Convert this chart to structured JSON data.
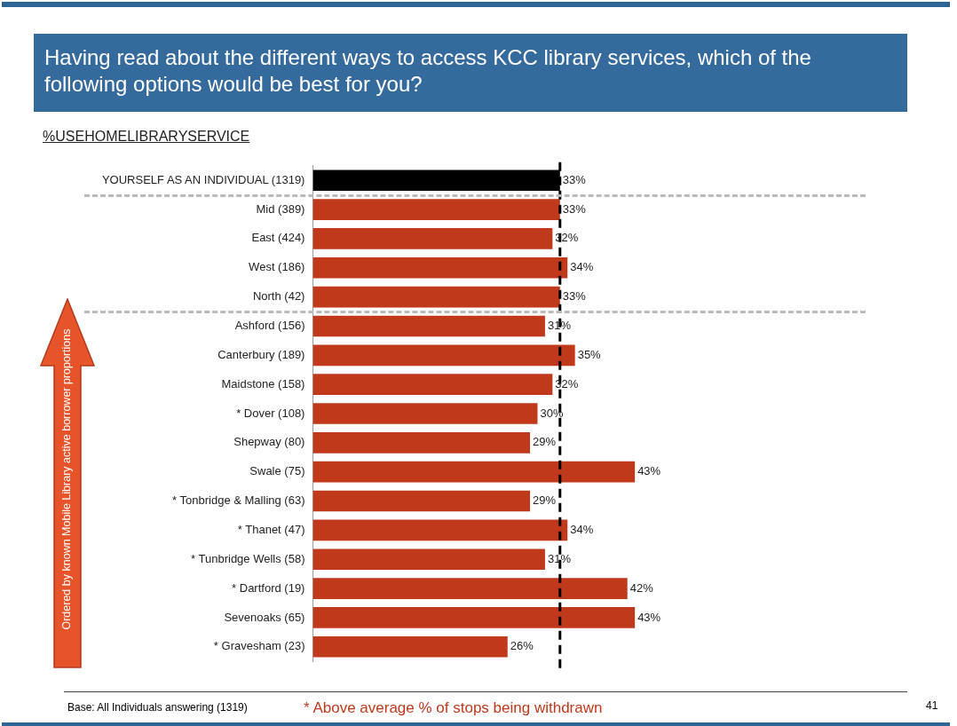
{
  "chart_data": {
    "type": "bar",
    "orientation": "horizontal",
    "title": "Having read about the different ways to access  KCC library services, which of the following options would be best for you?",
    "subtitle": "%USEHOMELIBRARYSERVICE",
    "categories": [
      "YOURSELF AS AN INDIVIDUAL (1319)",
      "Mid (389)",
      "East (424)",
      "West (186)",
      "North (42)",
      "Ashford (156)",
      "Canterbury (189)",
      "Maidstone (158)",
      "* Dover (108)",
      "Shepway (80)",
      "Swale (75)",
      "* Tonbridge & Malling (63)",
      "* Thanet (47)",
      "* Tunbridge Wells (58)",
      "* Dartford (19)",
      "Sevenoaks (65)",
      "* Gravesham (23)"
    ],
    "values": [
      33,
      33,
      32,
      34,
      33,
      31,
      35,
      32,
      30,
      29,
      43,
      29,
      34,
      31,
      42,
      43,
      26
    ],
    "value_labels": [
      "33%",
      "33%",
      "32%",
      "34%",
      "33%",
      "31%",
      "35%",
      "32%",
      "30%",
      "29%",
      "43%",
      "29%",
      "34%",
      "31%",
      "42%",
      "43%",
      "26%"
    ],
    "colors": [
      "#000000",
      "#c0391b",
      "#c0391b",
      "#c0391b",
      "#c0391b",
      "#c0391b",
      "#c0391b",
      "#c0391b",
      "#c0391b",
      "#c0391b",
      "#c0391b",
      "#c0391b",
      "#c0391b",
      "#c0391b",
      "#c0391b",
      "#c0391b",
      "#c0391b"
    ],
    "tick_labels": "y",
    "grid": false,
    "legend": false,
    "ref_lines": [
      {
        "axis": "x",
        "value": 33,
        "color": "#000000",
        "line_style": "dashed"
      }
    ],
    "annotations": [
      "Ordered by known Mobile Library active borrower proportions",
      "Base: All Individuals answering (1319)",
      "* Above average % of stops being withdrawn",
      "41"
    ]
  }
}
